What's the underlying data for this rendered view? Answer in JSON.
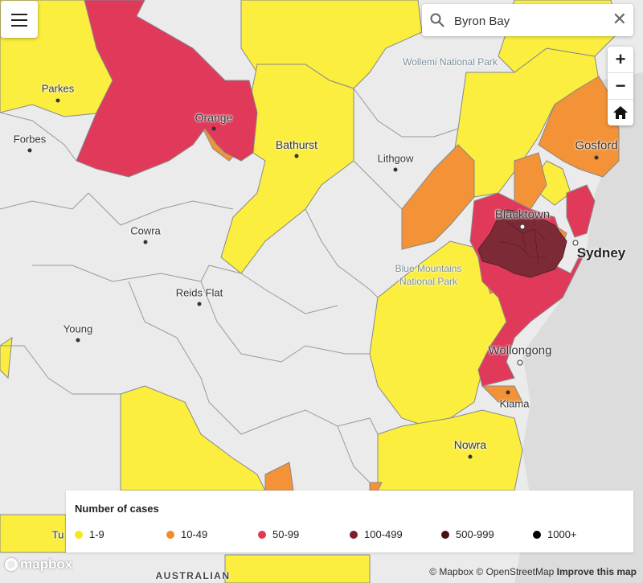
{
  "search": {
    "value": "Byron Bay"
  },
  "places": {
    "parkes": "Parkes",
    "forbes": "Forbes",
    "orange": "Orange",
    "bathurst": "Bathurst",
    "lithgow": "Lithgow",
    "cowra": "Cowra",
    "reids_flat": "Reids Flat",
    "young": "Young",
    "blacktown": "Blacktown",
    "sydney": "Sydney",
    "gosford": "Gosford",
    "wollongong": "Wollongong",
    "kiama": "Kiama",
    "nowra": "Nowra",
    "wollemi": "Wollemi National Park",
    "blue_mountains_1": "Blue Mountains",
    "blue_mountains_2": "National Park",
    "tumut_partial": "Tu",
    "australian": "AUSTRALIAN"
  },
  "legend": {
    "title": "Number of cases",
    "items": [
      {
        "label": "1-9",
        "color": "#f8e71c"
      },
      {
        "label": "10-49",
        "color": "#f28c28"
      },
      {
        "label": "50-99",
        "color": "#e03a52"
      },
      {
        "label": "100-499",
        "color": "#7a1f2b"
      },
      {
        "label": "500-999",
        "color": "#4a0f14"
      },
      {
        "label": "1000+",
        "color": "#000000"
      }
    ]
  },
  "zoom": {
    "in": "+",
    "out": "−"
  },
  "branding": {
    "logo": "mapbox"
  },
  "attribution": {
    "mapbox": "© Mapbox",
    "osm": "© OpenStreetMap",
    "improve": "Improve this map"
  },
  "colors": {
    "yellow": "#fbee3f",
    "orange": "#f39237",
    "red": "#e0395a",
    "darkred": "#7c2b36",
    "grey": "#ebebeb",
    "sea": "#d9d9d9"
  }
}
